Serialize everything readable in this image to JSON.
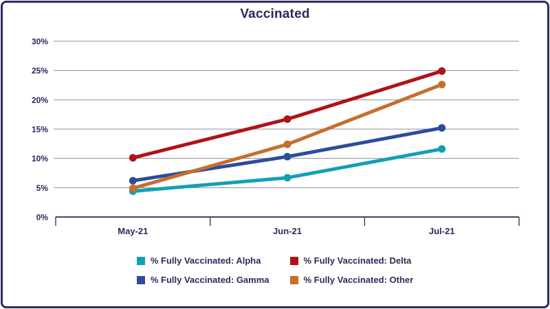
{
  "colors": {
    "text": "#2B2A5B",
    "border": "#2E2B5F",
    "gridline": "#8C8CA0",
    "axis": "#45446A",
    "background": "#FFFFFF"
  },
  "chart_data": {
    "type": "line",
    "title": "Vaccinated",
    "categories": [
      "May-21",
      "Jun-21",
      "Jul-21"
    ],
    "series": [
      {
        "name": "% Fully Vaccinated: Alpha",
        "color": "#12A0B5",
        "values": [
          4.4,
          6.7,
          11.6
        ]
      },
      {
        "name": "% Fully Vaccinated: Delta",
        "color": "#B01218",
        "values": [
          10.1,
          16.7,
          24.9
        ]
      },
      {
        "name": "% Fully Vaccinated: Gamma",
        "color": "#2C4C9C",
        "values": [
          6.2,
          10.3,
          15.2
        ]
      },
      {
        "name": "% Fully Vaccinated: Other",
        "color": "#C66E2E",
        "values": [
          4.9,
          12.4,
          22.6
        ]
      }
    ],
    "xlabel": "",
    "ylabel": "",
    "ylim": [
      0,
      30
    ],
    "yticks": [
      0,
      5,
      10,
      15,
      20,
      25,
      30
    ],
    "ytick_labels": [
      "0%",
      "5%",
      "10%",
      "15%",
      "20%",
      "25%",
      "30%"
    ],
    "grid": true,
    "legend_position": "bottom",
    "marker": "circle"
  }
}
